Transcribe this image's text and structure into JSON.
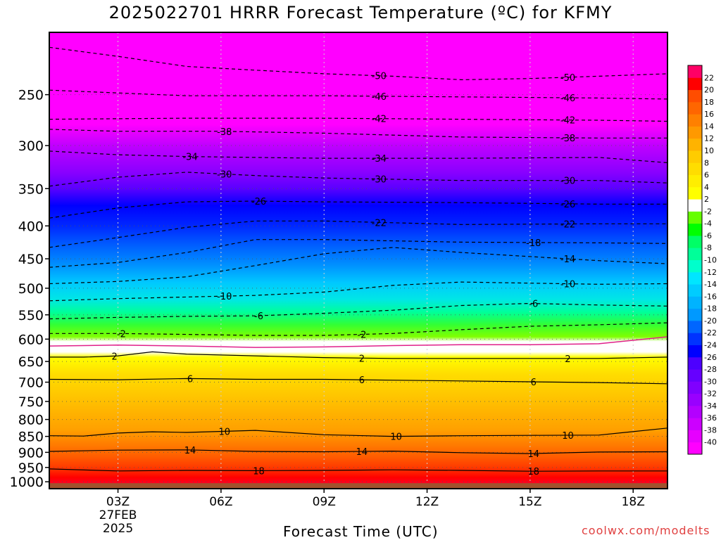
{
  "title": "2025022701 HRRR Forecast Temperature (ºC) for KFMY",
  "credit": "coolwx.com/modelts",
  "chart_data": {
    "type": "heatmap",
    "title": "2025022701 HRRR Forecast Temperature (ºC) for KFMY",
    "xlabel": "Forecast Time (UTC)",
    "ylabel": "",
    "x_unit": "hours since 2025-02-27 00Z",
    "xlim": [
      1,
      19
    ],
    "x_ticks": [
      {
        "x": 3,
        "label": "03Z",
        "sub": [
          "27FEB",
          "2025"
        ]
      },
      {
        "x": 6,
        "label": "06Z"
      },
      {
        "x": 9,
        "label": "09Z"
      },
      {
        "x": 12,
        "label": "12Z"
      },
      {
        "x": 15,
        "label": "15Z"
      },
      {
        "x": 18,
        "label": "18Z"
      }
    ],
    "y_ticks": [
      250,
      300,
      350,
      400,
      450,
      500,
      550,
      600,
      650,
      700,
      750,
      800,
      850,
      900,
      950,
      1000
    ],
    "ylim": [
      1025,
      200
    ],
    "y_scale": "log",
    "colorbar": {
      "levels": [
        -40,
        -38,
        -36,
        -34,
        -32,
        -30,
        -28,
        -26,
        -24,
        -22,
        -20,
        -18,
        -16,
        -14,
        -12,
        -10,
        -8,
        -6,
        -4,
        -2,
        2,
        4,
        6,
        8,
        10,
        12,
        14,
        16,
        18,
        20,
        22
      ],
      "colors": [
        "#ff00ff",
        "#e600ff",
        "#cc00ff",
        "#b300ff",
        "#9900ff",
        "#8000ff",
        "#6600ff",
        "#4d00ff",
        "#0000ff",
        "#0033ff",
        "#0066ff",
        "#0099ff",
        "#00b3ff",
        "#00ccff",
        "#00e6ff",
        "#00ffcc",
        "#00ff99",
        "#00ff66",
        "#00ff00",
        "#66ff00",
        "#ffffff",
        "#ffff00",
        "#ffee00",
        "#ffdd00",
        "#ffcc00",
        "#ffb300",
        "#ff9900",
        "#ff8000",
        "#ff6600",
        "#ff4d00",
        "#ff0000",
        "#ff0066"
      ]
    },
    "isotherms": [
      {
        "value": -50,
        "dashed": true,
        "label": "-50",
        "x": [
          1,
          3,
          5,
          7,
          9,
          11,
          13,
          15,
          17,
          19
        ],
        "p": [
          211,
          218,
          226,
          229,
          232,
          234,
          237,
          236,
          234,
          232
        ],
        "label_x": [
          10.6,
          16.1
        ]
      },
      {
        "value": -46,
        "dashed": true,
        "label": "-46",
        "x": [
          1,
          5,
          9,
          13,
          17,
          19
        ],
        "p": [
          246,
          251,
          251,
          252,
          253,
          254
        ],
        "label_x": [
          10.6,
          16.1
        ]
      },
      {
        "value": -42,
        "dashed": true,
        "label": "-42",
        "x": [
          1,
          5,
          9,
          13,
          17,
          19
        ],
        "p": [
          273,
          272,
          272,
          273,
          274,
          275
        ],
        "label_x": [
          10.6,
          16.1
        ]
      },
      {
        "value": -38,
        "dashed": true,
        "label": "-38",
        "x": [
          1,
          3,
          6,
          9,
          13,
          17,
          19
        ],
        "p": [
          283,
          285,
          285,
          287,
          291,
          292,
          292
        ],
        "label_x": [
          6.1,
          16.1
        ]
      },
      {
        "value": -34,
        "dashed": true,
        "label": "-34",
        "x": [
          1,
          3,
          5,
          7,
          9,
          13,
          17,
          19
        ],
        "p": [
          306,
          310,
          312,
          313,
          314,
          314,
          313,
          319
        ],
        "label_x": [
          5.1,
          10.6
        ]
      },
      {
        "value": -30,
        "dashed": true,
        "label": "-30",
        "x": [
          1,
          3,
          5,
          7,
          9,
          13,
          17,
          19
        ],
        "p": [
          347,
          336,
          330,
          334,
          337,
          340,
          340,
          343
        ],
        "label_x": [
          6.1,
          10.6,
          16.1
        ]
      },
      {
        "value": -26,
        "dashed": true,
        "label": "-26",
        "x": [
          1,
          3,
          5,
          7,
          9,
          13,
          17,
          19
        ],
        "p": [
          389,
          375,
          367,
          366,
          367,
          368,
          370,
          370
        ],
        "label_x": [
          7.1,
          16.1
        ]
      },
      {
        "value": -22,
        "dashed": true,
        "label": "-22",
        "x": [
          1,
          3,
          5,
          7,
          9,
          13,
          17,
          19
        ],
        "p": [
          432,
          417,
          402,
          393,
          393,
          398,
          397,
          397
        ],
        "label_x": [
          10.6,
          16.1
        ]
      },
      {
        "value": -18,
        "dashed": true,
        "label": "-18",
        "x": [
          1,
          3,
          5,
          7,
          9,
          13,
          17,
          19
        ],
        "p": [
          464,
          456,
          440,
          420,
          420,
          424,
          425,
          426
        ],
        "label_x": [
          15.1
        ]
      },
      {
        "value": -14,
        "dashed": true,
        "label": "-14",
        "x": [
          1,
          3,
          5,
          7,
          9,
          11,
          13,
          17,
          19
        ],
        "p": [
          492,
          488,
          480,
          461,
          442,
          432,
          440,
          453,
          458
        ],
        "label_x": [
          16.1
        ]
      },
      {
        "value": -10,
        "dashed": true,
        "label": "-10",
        "x": [
          1,
          3,
          5,
          7,
          9,
          11,
          13,
          15,
          17,
          19
        ],
        "p": [
          523,
          519,
          516,
          513,
          507,
          495,
          489,
          491,
          493,
          492
        ],
        "label_x": [
          6.1,
          16.1
        ]
      },
      {
        "value": -6,
        "dashed": true,
        "label": "-6",
        "x": [
          1,
          3,
          5,
          7,
          9,
          11,
          13,
          15,
          17,
          19
        ],
        "p": [
          558,
          555,
          553,
          552,
          547,
          541,
          532,
          528,
          531,
          533
        ],
        "label_x": [
          7.1,
          15.1
        ]
      },
      {
        "value": -2,
        "dashed": true,
        "label": "-2",
        "x": [
          1,
          3,
          5,
          7,
          9,
          11,
          13,
          15,
          17,
          19
        ],
        "p": [
          588,
          588,
          590,
          592,
          592,
          588,
          580,
          573,
          570,
          566
        ],
        "label_x": [
          3.1,
          10.1
        ]
      },
      {
        "value": 0,
        "dashed": false,
        "label": "",
        "x": [
          1,
          3,
          5,
          7,
          9,
          11,
          13,
          15,
          17,
          19
        ],
        "p": [
          615,
          613,
          615,
          618,
          617,
          614,
          612,
          612,
          610,
          595
        ],
        "label_x": [],
        "color": "#e0208a"
      },
      {
        "value": 2,
        "dashed": false,
        "label": "2",
        "x": [
          1,
          2,
          3,
          4,
          5,
          7,
          9,
          11,
          13,
          15,
          17,
          19
        ],
        "p": [
          640,
          640,
          637,
          628,
          633,
          637,
          641,
          643,
          643,
          643,
          643,
          640
        ],
        "label_x": [
          2.9,
          10.1,
          16.1
        ]
      },
      {
        "value": 6,
        "dashed": false,
        "label": "6",
        "x": [
          1,
          3,
          5,
          7,
          9,
          11,
          13,
          15,
          17,
          19
        ],
        "p": [
          693,
          694,
          691,
          693,
          693,
          695,
          697,
          699,
          701,
          704
        ],
        "label_x": [
          5.1,
          10.1,
          15.1
        ]
      },
      {
        "value": 10,
        "dashed": false,
        "label": "10",
        "x": [
          1,
          2,
          3,
          4,
          5,
          7,
          9,
          11,
          13,
          15,
          17,
          19
        ],
        "p": [
          848,
          849,
          840,
          836,
          838,
          832,
          845,
          850,
          848,
          847,
          846,
          825
        ],
        "label_x": [
          6.1,
          11.1,
          16.1
        ]
      },
      {
        "value": 14,
        "dashed": false,
        "label": "14",
        "x": [
          1,
          3,
          5,
          7,
          9,
          11,
          13,
          15,
          17,
          19
        ],
        "p": [
          897,
          893,
          892,
          897,
          898,
          896,
          901,
          904,
          899,
          898
        ],
        "label_x": [
          5.1,
          10.1,
          15.1
        ]
      },
      {
        "value": 18,
        "dashed": false,
        "label": "18",
        "x": [
          1,
          3,
          5,
          7,
          9,
          11,
          13,
          15,
          17,
          19
        ],
        "p": [
          955,
          962,
          960,
          961,
          960,
          958,
          960,
          963,
          962,
          962
        ],
        "label_x": [
          7.1,
          15.1
        ]
      }
    ],
    "surface_p": 1005,
    "surface_color": "#a0522d",
    "grid": true
  }
}
